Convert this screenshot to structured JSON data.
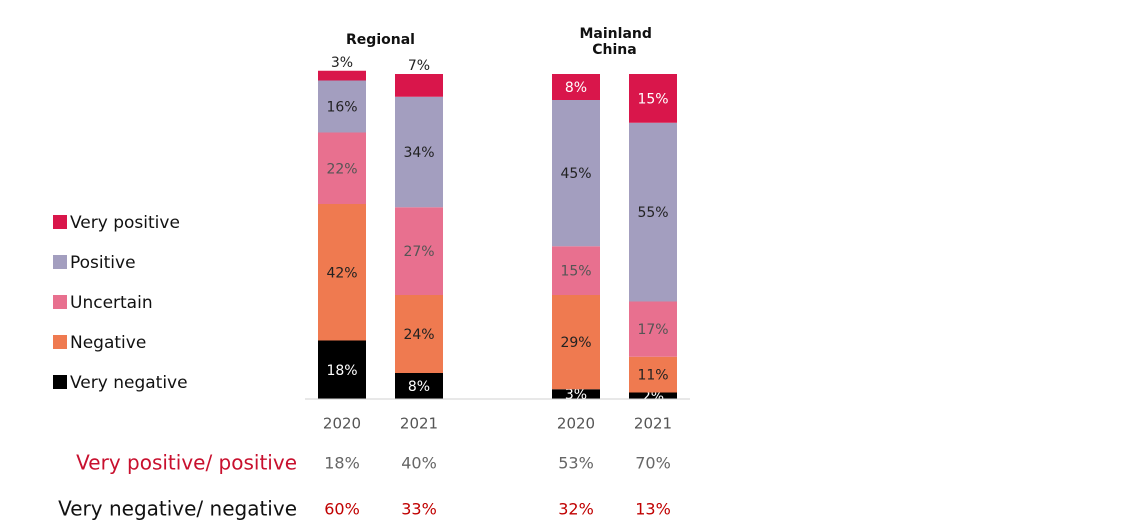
{
  "chart_data": {
    "type": "stacked_bar",
    "groups": [
      {
        "name": "Regional",
        "categories": [
          "2020",
          "2021"
        ]
      },
      {
        "name": "Mainland China",
        "categories": [
          "2020",
          "2021"
        ]
      }
    ],
    "ylim": [
      0,
      100
    ],
    "series": [
      {
        "name": "Very positive",
        "color": "#d9164b",
        "label_color": "#ffffff",
        "values": [
          3,
          7,
          8,
          15
        ],
        "value_labels": [
          "3%",
          "7%",
          "8%",
          "15%"
        ]
      },
      {
        "name": "Positive",
        "color": "#a39ebf",
        "label_color": "#222222",
        "values": [
          16,
          34,
          45,
          55
        ],
        "value_labels": [
          "16%",
          "34%",
          "45%",
          "55%"
        ]
      },
      {
        "name": "Uncertain",
        "color": "#e8708f",
        "label_color": "#555555",
        "values": [
          22,
          27,
          15,
          17
        ],
        "value_labels": [
          "22%",
          "27%",
          "15%",
          "17%"
        ]
      },
      {
        "name": "Negative",
        "color": "#ef7a50",
        "label_color": "#222222",
        "values": [
          42,
          24,
          29,
          11
        ],
        "value_labels": [
          "42%",
          "24%",
          "29%",
          "11%"
        ]
      },
      {
        "name": "Very negative",
        "color": "#000000",
        "label_color": "#ffffff",
        "values": [
          18,
          8,
          3,
          2
        ],
        "value_labels": [
          "18%",
          "8%",
          "3%",
          "2%"
        ]
      }
    ],
    "summary": [
      {
        "label": "Very positive/ positive",
        "label_color": "#c8102e",
        "value_color": "#666666",
        "values": [
          18,
          40,
          53,
          70
        ],
        "value_labels": [
          "18%",
          "40%",
          "53%",
          "70%"
        ]
      },
      {
        "label": "Very negative/ negative",
        "label_color": "#111111",
        "value_color": "#c00000",
        "values": [
          60,
          33,
          32,
          13
        ],
        "value_labels": [
          "60%",
          "33%",
          "32%",
          "13%"
        ]
      }
    ]
  }
}
